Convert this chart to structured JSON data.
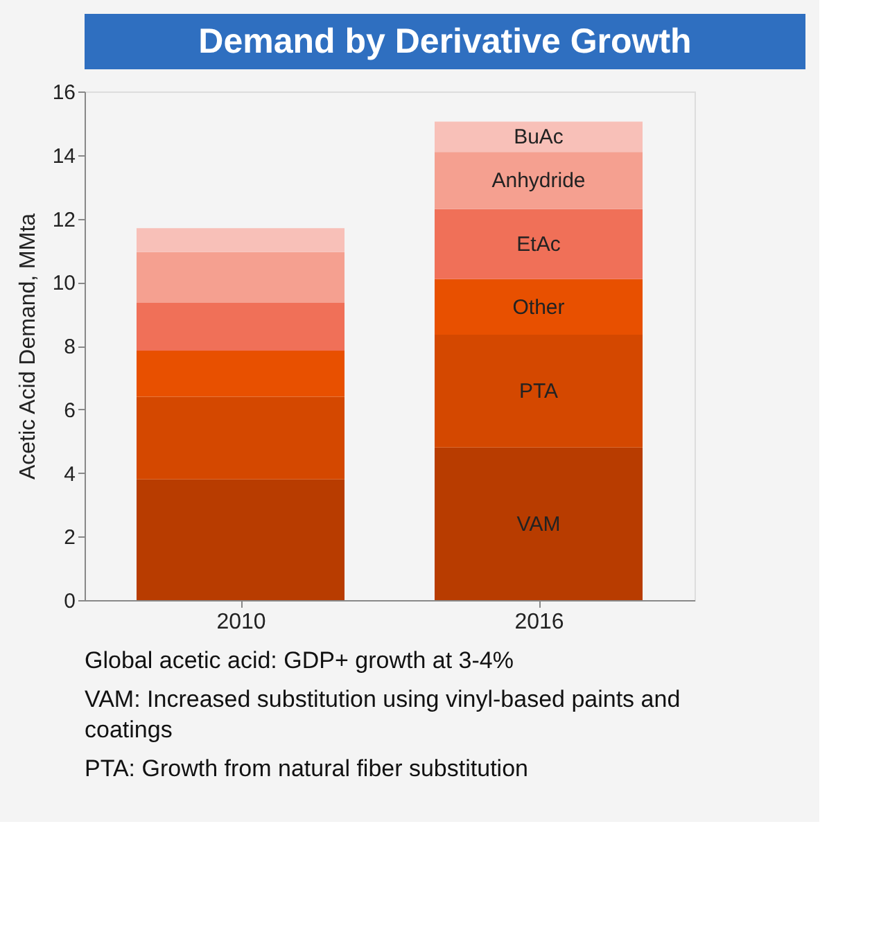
{
  "chart_data": {
    "type": "bar",
    "title": "Demand by Derivative Growth",
    "ylabel": "Acetic Acid Demand, MMta",
    "categories": [
      "2010",
      "2016"
    ],
    "stacked": true,
    "series": [
      {
        "name": "VAM",
        "color": "#b83c00",
        "values": [
          3.8,
          4.8
        ]
      },
      {
        "name": "PTA",
        "color": "#d44800",
        "values": [
          2.6,
          3.55
        ]
      },
      {
        "name": "Other",
        "color": "#e85000",
        "values": [
          1.45,
          1.75
        ]
      },
      {
        "name": "EtAc",
        "color": "#f07058",
        "values": [
          1.5,
          2.2
        ]
      },
      {
        "name": "Anhydride",
        "color": "#f5a090",
        "values": [
          1.6,
          1.8
        ]
      },
      {
        "name": "BuAc",
        "color": "#f8c0b8",
        "values": [
          0.75,
          0.95
        ]
      }
    ],
    "ylim": [
      0,
      16
    ],
    "yticks": [
      0,
      2,
      4,
      6,
      8,
      10,
      12,
      14,
      16
    ],
    "grid": false,
    "annotations": [
      "Global acetic acid: GDP+ growth at 3-4%",
      "VAM: Increased substitution using vinyl-based paints and coatings",
      "PTA: Growth from natural fiber substitution"
    ]
  }
}
